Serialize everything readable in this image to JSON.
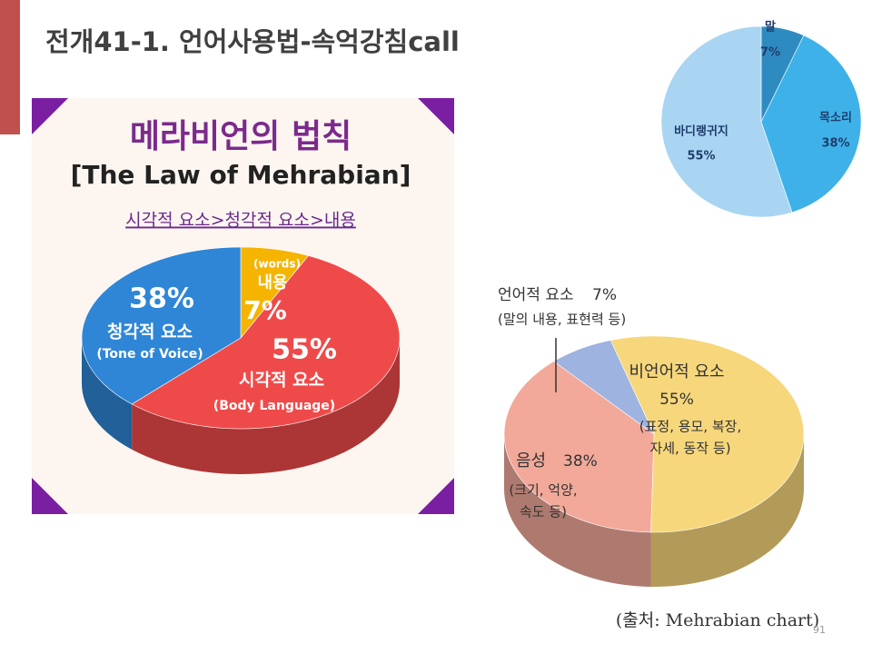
{
  "slide": {
    "title": "전개41-1. 언어사용법-속억강침call",
    "page_number": "91"
  },
  "chart_data": [
    {
      "type": "pie",
      "title": "메라비언의 법칙",
      "subtitle": "[The Law of Mehrabian]",
      "annotation": "시각적 요소>청각적 요소>내용",
      "categories": [
        "내용",
        "시각적 요소",
        "청각적 요소"
      ],
      "sublabels": [
        "(words)",
        "(Body Language)",
        "(Tone of Voice)"
      ],
      "values": [
        7,
        55,
        38
      ],
      "value_labels": [
        "7%",
        "55%",
        "38%"
      ],
      "colors": [
        "#f5b400",
        "#ef4a4a",
        "#2f86d6"
      ]
    },
    {
      "type": "pie",
      "categories": [
        "말",
        "목소리",
        "바디랭귀지"
      ],
      "values": [
        7,
        38,
        55
      ],
      "value_labels": [
        "7%",
        "38%",
        "55%"
      ],
      "colors": [
        "#2e8bc0",
        "#3eb2e8",
        "#a9d5f2"
      ]
    },
    {
      "type": "pie",
      "source": "(출처: Mehrabian chart)",
      "categories": [
        "언어적 요소",
        "비언어적 요소",
        "음성"
      ],
      "descriptions": [
        [
          "(말의 내용, 표현력 등)"
        ],
        [
          "(표정, 용모, 복장,",
          "자세, 동작 등)"
        ],
        [
          "(크기, 억양,",
          "속도 등)"
        ]
      ],
      "values": [
        7,
        55,
        38
      ],
      "value_labels": [
        "7%",
        "55%",
        "38%"
      ],
      "colors": [
        "#9eb3e0",
        "#f7d77c",
        "#f2a99a"
      ]
    }
  ]
}
